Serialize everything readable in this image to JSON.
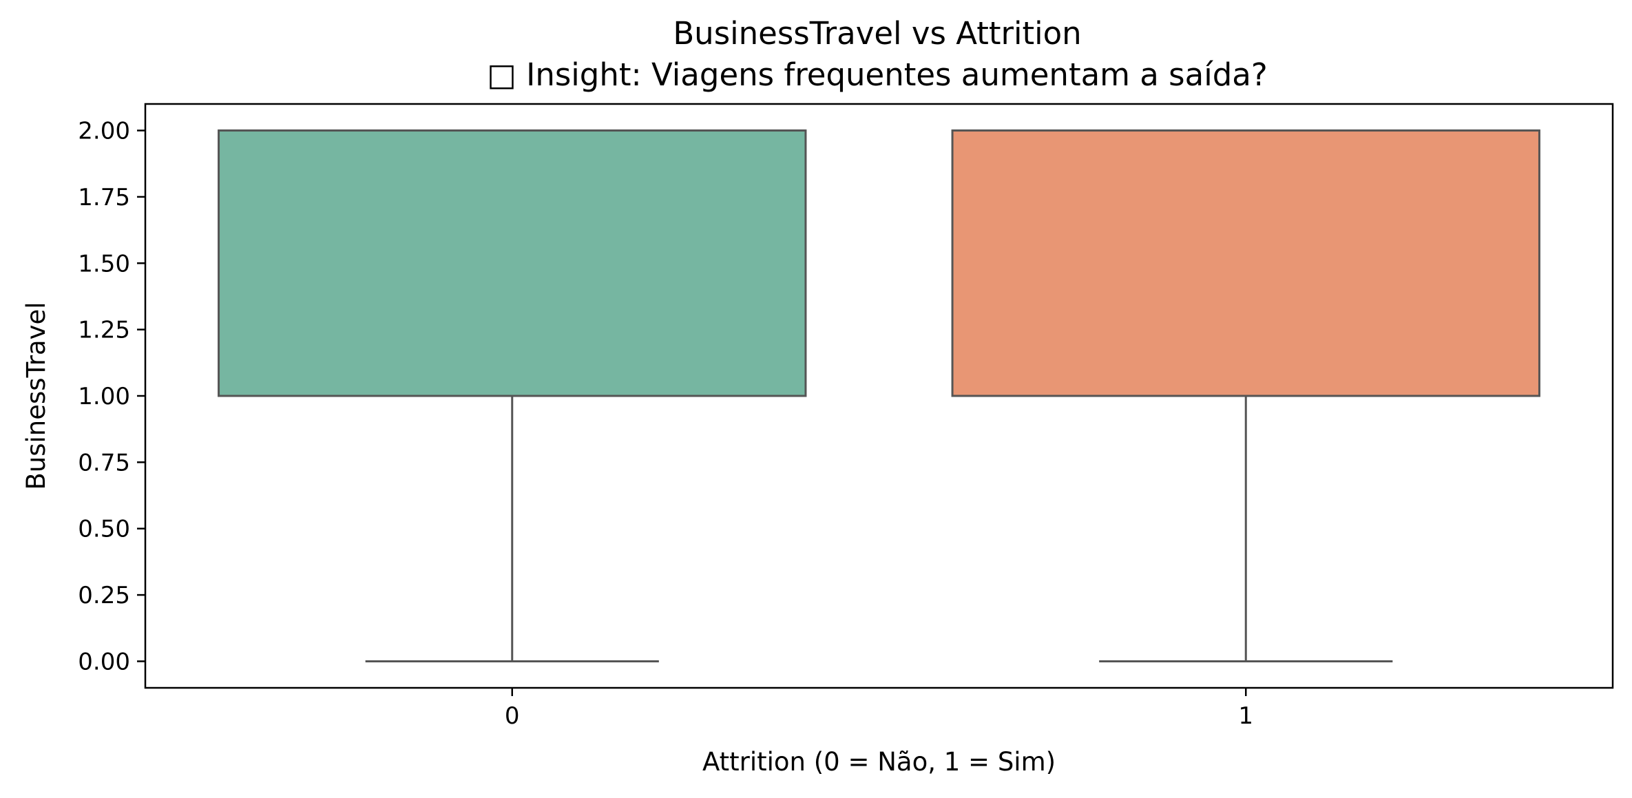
{
  "chart_data": {
    "type": "box",
    "title": "BusinessTravel vs Attrition",
    "subtitle": "□ Insight: Viagens frequentes aumentam a saída?",
    "xlabel": "Attrition (0 = Não, 1 = Sim)",
    "ylabel": "BusinessTravel",
    "categories": [
      "0",
      "1"
    ],
    "ylim": [
      -0.1,
      2.1
    ],
    "yticks": [
      0.0,
      0.25,
      0.5,
      0.75,
      1.0,
      1.25,
      1.5,
      1.75,
      2.0
    ],
    "ytick_labels": [
      "0.00",
      "0.25",
      "0.50",
      "0.75",
      "1.00",
      "1.25",
      "1.50",
      "1.75",
      "2.00"
    ],
    "grid": false,
    "legend": "none",
    "boxes": [
      {
        "category": "0",
        "whisker_low": 0.0,
        "q1": 1.0,
        "median": 2.0,
        "q3": 2.0,
        "whisker_high": 2.0,
        "color": "#76b6a1"
      },
      {
        "category": "1",
        "whisker_low": 0.0,
        "q1": 1.0,
        "median": 2.0,
        "q3": 2.0,
        "whisker_high": 2.0,
        "color": "#e89674"
      }
    ],
    "line_color": "#555555"
  }
}
